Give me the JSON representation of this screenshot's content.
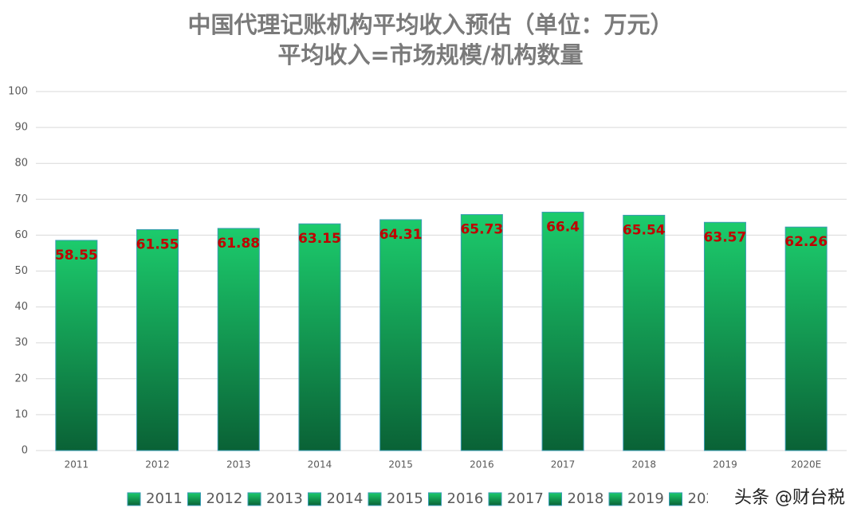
{
  "chart_data": {
    "type": "bar",
    "title": "中国代理记账机构平均收入预估（单位：万元）",
    "subtitle": "平均收入=市场规模/机构数量",
    "categories": [
      "2011",
      "2012",
      "2013",
      "2014",
      "2015",
      "2016",
      "2017",
      "2018",
      "2019",
      "2020E"
    ],
    "values": [
      58.55,
      61.55,
      61.88,
      63.15,
      64.31,
      65.73,
      66.4,
      65.54,
      63.57,
      62.26
    ],
    "color": "#1ccb6c",
    "ylim": [
      0,
      100
    ],
    "yticks": [
      0,
      10,
      20,
      30,
      40,
      50,
      60,
      70,
      80,
      90,
      100
    ],
    "grid": true,
    "legend": "bottom"
  },
  "watermark": "头条 @财台税"
}
